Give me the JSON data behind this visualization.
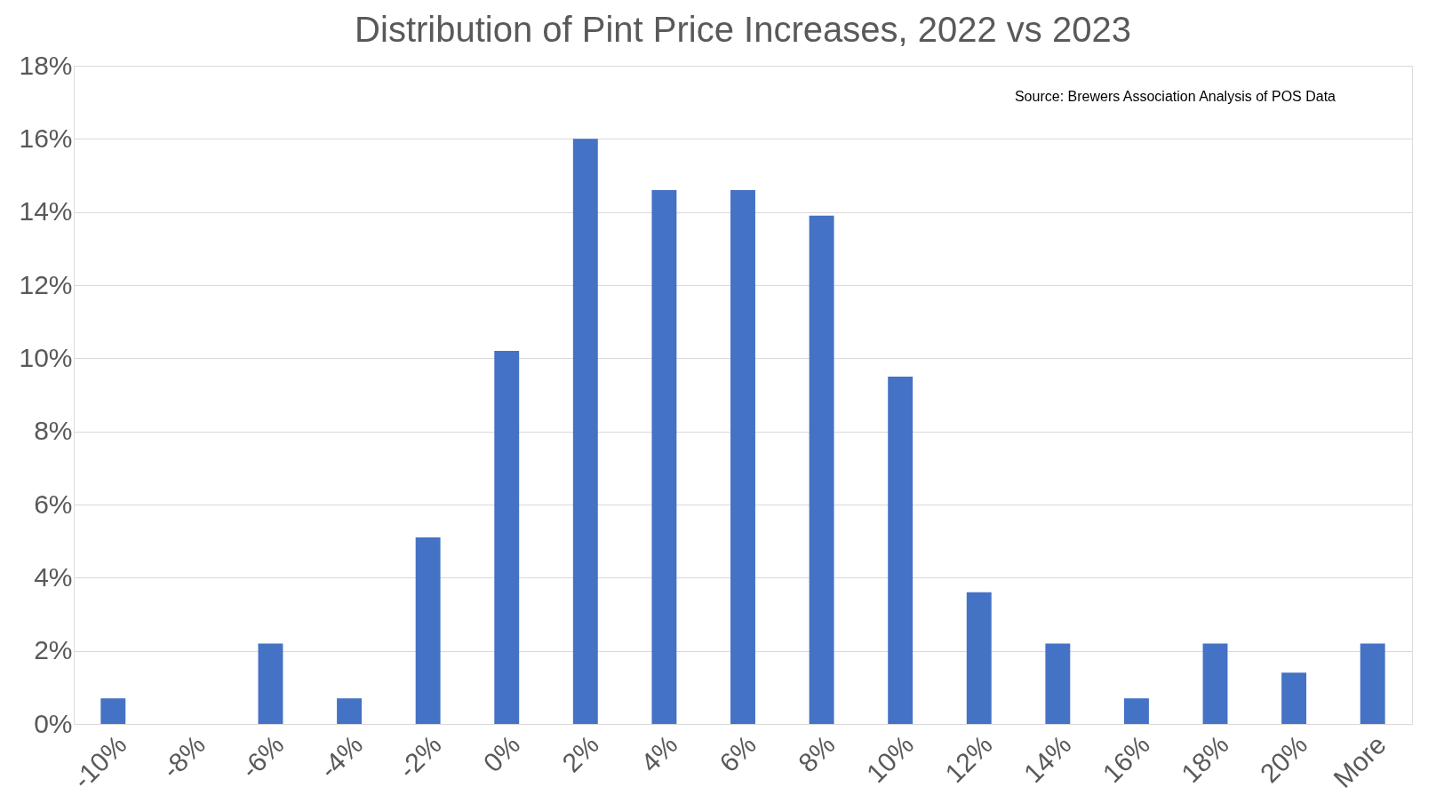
{
  "chart_data": {
    "type": "bar",
    "title": "Distribution of Pint Price Increases, 2022 vs 2023",
    "annotations": [
      "Source: Brewers Association Analysis of POS Data"
    ],
    "categories": [
      "-10%",
      "-8%",
      "-6%",
      "-4%",
      "-2%",
      "0%",
      "2%",
      "4%",
      "6%",
      "8%",
      "10%",
      "12%",
      "14%",
      "16%",
      "18%",
      "20%",
      "More"
    ],
    "values": [
      0.7,
      0,
      2.2,
      0.7,
      5.1,
      10.2,
      16.0,
      14.6,
      14.6,
      13.9,
      9.5,
      3.6,
      2.2,
      0.7,
      2.2,
      1.4,
      2.2
    ],
    "color": "#4472c4",
    "ylim": [
      0,
      18
    ],
    "yticks": [
      {
        "value": 0,
        "label": "0%"
      },
      {
        "value": 2,
        "label": "2%"
      },
      {
        "value": 4,
        "label": "4%"
      },
      {
        "value": 6,
        "label": "6%"
      },
      {
        "value": 8,
        "label": "8%"
      },
      {
        "value": 10,
        "label": "10%"
      },
      {
        "value": 12,
        "label": "12%"
      },
      {
        "value": 14,
        "label": "14%"
      },
      {
        "value": 16,
        "label": "16%"
      },
      {
        "value": 18,
        "label": "18%"
      }
    ],
    "grid": "y"
  }
}
